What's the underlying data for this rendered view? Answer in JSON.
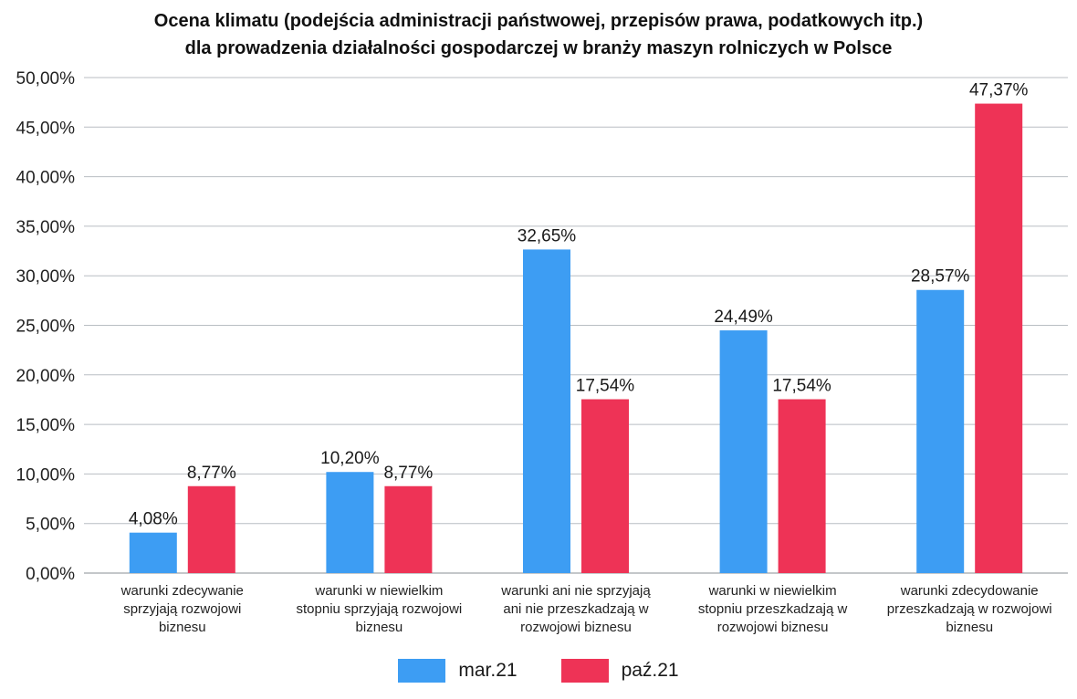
{
  "chart_data": {
    "type": "bar",
    "title_lines": [
      "Ocena klimatu (podejścia administracji państwowej, przepisów prawa, podatkowych itp.)",
      "dla prowadzenia działalności gospodarczej w branży maszyn rolniczych w Polsce"
    ],
    "categories": [
      [
        "warunki zdecywanie",
        "sprzyjają rozwojowi",
        "biznesu"
      ],
      [
        "warunki w niewielkim",
        "stopniu sprzyjają rozwojowi",
        "biznesu"
      ],
      [
        "warunki ani nie sprzyjają",
        "ani nie przeszkadzają w",
        "rozwojowi biznesu"
      ],
      [
        "warunki w niewielkim",
        "stopniu przeszkadzają w",
        "rozwojowi biznesu"
      ],
      [
        "warunki zdecydowanie",
        "przeszkadzają w rozwojowi",
        "biznesu"
      ]
    ],
    "series": [
      {
        "name": "mar.21",
        "color": "#3d9df3",
        "values": [
          4.08,
          10.2,
          32.65,
          24.49,
          28.57
        ],
        "labels": [
          "4,08%",
          "10,20%",
          "32,65%",
          "24,49%",
          "28,57%"
        ]
      },
      {
        "name": "paź.21",
        "color": "#ee3356",
        "values": [
          8.77,
          8.77,
          17.54,
          17.54,
          47.37
        ],
        "labels": [
          "8,77%",
          "8,77%",
          "17,54%",
          "17,54%",
          "47,37%"
        ]
      }
    ],
    "yticks": [
      0,
      5,
      10,
      15,
      20,
      25,
      30,
      35,
      40,
      45,
      50
    ],
    "ytick_labels": [
      "0,00%",
      "5,00%",
      "10,00%",
      "15,00%",
      "20,00%",
      "25,00%",
      "30,00%",
      "35,00%",
      "40,00%",
      "45,00%",
      "50,00%"
    ],
    "ylim": [
      0,
      50
    ],
    "grid": true,
    "legend_position": "bottom-center"
  }
}
